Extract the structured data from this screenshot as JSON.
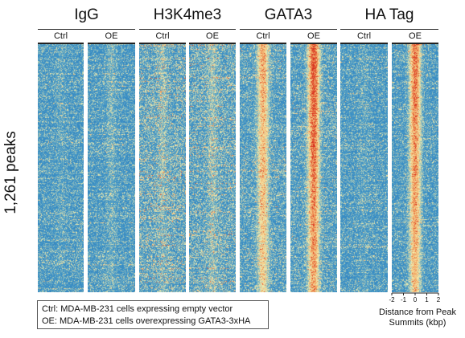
{
  "chart_data": {
    "type": "heatmap",
    "y_label": "1,261 peaks",
    "groups": [
      {
        "title": "IgG",
        "conditions": [
          {
            "label": "Ctrl",
            "center_signal": 0.05,
            "background": 0.3
          },
          {
            "label": "OE",
            "center_signal": 0.1,
            "background": 0.3
          }
        ]
      },
      {
        "title": "H3K4me3",
        "conditions": [
          {
            "label": "Ctrl",
            "center_signal": 0.12,
            "background": 0.45
          },
          {
            "label": "OE",
            "center_signal": 0.14,
            "background": 0.45
          }
        ]
      },
      {
        "title": "GATA3",
        "conditions": [
          {
            "label": "Ctrl",
            "center_signal": 0.55,
            "background": 0.35
          },
          {
            "label": "OE",
            "center_signal": 0.85,
            "background": 0.35
          }
        ]
      },
      {
        "title": "HA Tag",
        "conditions": [
          {
            "label": "Ctrl",
            "center_signal": 0.05,
            "background": 0.3
          },
          {
            "label": "OE",
            "center_signal": 0.75,
            "background": 0.3
          }
        ]
      }
    ],
    "x_axis": {
      "title": "Distance from Peak Summits (kbp)",
      "range": [
        -2,
        2
      ],
      "ticks": [
        -2,
        -1,
        0,
        1,
        2
      ]
    },
    "colormap": [
      "#1f64b0",
      "#3f95c8",
      "#f3efb0",
      "#f3a35f",
      "#d7301f"
    ]
  },
  "legend": {
    "line1": "Ctrl: MDA-MB-231 cells expressing empty vector",
    "line2": "OE: MDA-MB-231 cells overexpressing GATA3-3xHA"
  }
}
